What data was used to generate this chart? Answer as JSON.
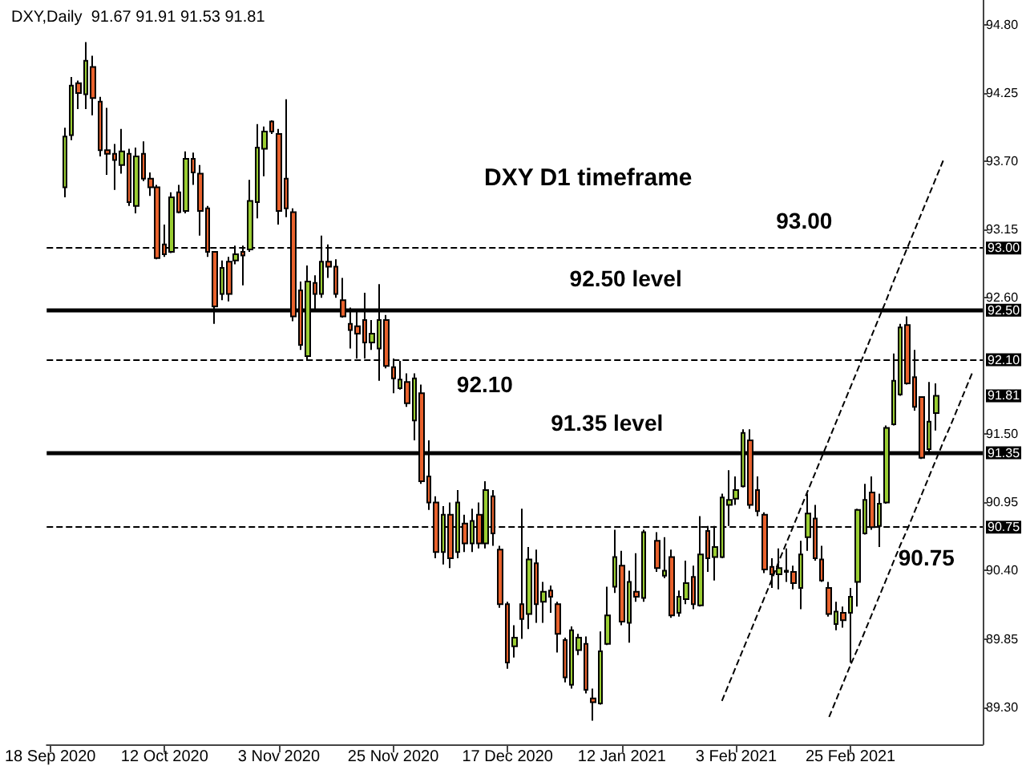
{
  "chart_data": {
    "type": "candlestick",
    "title": "DXY,Daily  91.67 91.91 91.53 91.81",
    "categories": [
      "18 Sep 2020",
      null,
      null,
      null,
      null,
      null,
      null,
      null,
      null,
      null,
      null,
      null,
      null,
      null,
      null,
      null,
      "12 Oct 2020",
      null,
      null,
      null,
      null,
      null,
      null,
      null,
      null,
      null,
      null,
      null,
      null,
      null,
      null,
      null,
      "3 Nov 2020",
      null,
      null,
      null,
      null,
      null,
      null,
      null,
      null,
      null,
      null,
      null,
      null,
      null,
      null,
      null,
      "25 Nov 2020",
      null,
      null,
      null,
      null,
      null,
      null,
      null,
      null,
      null,
      null,
      null,
      null,
      null,
      null,
      null,
      "17 Dec 2020",
      null,
      null,
      null,
      null,
      null,
      null,
      null,
      null,
      null,
      null,
      null,
      null,
      null,
      null,
      null,
      "12 Jan 2021",
      null,
      null,
      null,
      null,
      null,
      null,
      null,
      null,
      null,
      null,
      null,
      null,
      null,
      null,
      null,
      "3 Feb 2021",
      null,
      null,
      null,
      null,
      null,
      null,
      null,
      null,
      null,
      null,
      null,
      null,
      null,
      null,
      null,
      "25 Feb 2021",
      null,
      null,
      null,
      null,
      null,
      null,
      null,
      null,
      null,
      null,
      null,
      null,
      null,
      null,
      null,
      null,
      null,
      null
    ],
    "ohlc": [
      null,
      null,
      [
        93.49,
        93.97,
        93.41,
        93.9
      ],
      [
        93.91,
        94.38,
        93.87,
        94.31
      ],
      [
        94.33,
        94.35,
        94.12,
        94.25
      ],
      [
        94.24,
        94.66,
        94.12,
        94.51
      ],
      [
        94.46,
        94.55,
        94.07,
        94.21
      ],
      [
        94.18,
        94.22,
        93.74,
        93.79
      ],
      [
        93.79,
        94.13,
        93.59,
        93.76
      ],
      [
        93.76,
        93.84,
        93.47,
        93.71
      ],
      [
        93.67,
        93.96,
        93.6,
        93.78
      ],
      [
        93.76,
        93.8,
        93.34,
        93.37
      ],
      [
        93.34,
        93.81,
        93.28,
        93.74
      ],
      [
        93.76,
        93.86,
        93.54,
        93.56
      ],
      [
        93.56,
        93.61,
        93.42,
        93.49
      ],
      [
        93.49,
        93.51,
        92.91,
        92.92
      ],
      [
        93.03,
        93.19,
        92.93,
        92.95
      ],
      [
        92.97,
        93.45,
        92.96,
        93.41
      ],
      [
        93.45,
        93.51,
        93.28,
        93.29
      ],
      [
        93.3,
        93.78,
        93.28,
        93.72
      ],
      [
        93.72,
        93.77,
        93.51,
        93.61
      ],
      [
        93.6,
        93.67,
        93.1,
        93.3
      ],
      [
        93.32,
        93.34,
        92.93,
        92.97
      ],
      [
        92.97,
        92.97,
        92.39,
        92.53
      ],
      [
        92.63,
        92.9,
        92.58,
        92.84
      ],
      [
        92.89,
        92.93,
        92.57,
        92.63
      ],
      [
        92.9,
        93.02,
        92.87,
        92.95
      ],
      [
        92.97,
        93.02,
        92.7,
        92.94
      ],
      [
        92.99,
        93.55,
        92.97,
        93.38
      ],
      [
        93.37,
        94.0,
        93.24,
        93.81
      ],
      [
        93.8,
        93.98,
        93.58,
        93.94
      ],
      [
        94.02,
        94.03,
        93.92,
        93.94
      ],
      [
        93.92,
        93.96,
        93.19,
        93.3
      ],
      [
        93.56,
        94.2,
        93.25,
        93.32
      ],
      [
        93.29,
        93.32,
        92.41,
        92.45
      ],
      [
        92.66,
        92.73,
        92.18,
        92.22
      ],
      [
        92.13,
        92.86,
        92.09,
        92.73
      ],
      [
        92.72,
        92.78,
        92.5,
        92.63
      ],
      [
        92.63,
        93.1,
        92.6,
        92.89
      ],
      [
        92.89,
        93.03,
        92.76,
        92.85
      ],
      [
        92.85,
        92.91,
        92.6,
        92.63
      ],
      [
        92.58,
        92.76,
        92.44,
        92.45
      ],
      [
        92.39,
        92.52,
        92.19,
        92.34
      ],
      [
        92.37,
        92.5,
        92.11,
        92.31
      ],
      [
        92.42,
        92.64,
        92.11,
        92.24
      ],
      [
        92.24,
        92.42,
        92.18,
        92.31
      ],
      [
        92.19,
        92.71,
        91.93,
        92.42
      ],
      [
        92.42,
        92.46,
        92.03,
        92.05
      ],
      [
        92.04,
        92.11,
        91.83,
        91.95
      ],
      [
        91.87,
        92.09,
        91.86,
        91.94
      ],
      [
        91.92,
        91.99,
        91.72,
        91.75
      ],
      [
        91.61,
        91.99,
        91.45,
        91.95
      ],
      [
        91.83,
        91.9,
        91.1,
        91.12
      ],
      [
        91.16,
        91.45,
        90.89,
        90.95
      ],
      [
        90.95,
        91.0,
        90.5,
        90.55
      ],
      [
        90.55,
        90.92,
        90.45,
        90.85
      ],
      [
        90.85,
        90.95,
        90.42,
        90.5
      ],
      [
        90.55,
        91.05,
        90.5,
        90.95
      ],
      [
        90.78,
        90.85,
        90.55,
        90.62
      ],
      [
        90.62,
        90.9,
        90.55,
        90.8
      ],
      [
        90.85,
        90.95,
        90.58,
        90.62
      ],
      [
        90.62,
        91.12,
        90.58,
        91.05
      ],
      [
        91.0,
        91.05,
        90.6,
        90.7
      ],
      [
        90.57,
        90.6,
        90.1,
        90.13
      ],
      [
        90.13,
        90.15,
        89.61,
        89.66
      ],
      [
        89.79,
        89.96,
        89.7,
        89.86
      ],
      [
        90.13,
        90.9,
        89.85,
        90.01
      ],
      [
        90.05,
        90.59,
        89.93,
        90.49
      ],
      [
        90.46,
        90.57,
        89.98,
        90.13
      ],
      [
        90.15,
        90.31,
        89.98,
        90.23
      ],
      [
        90.24,
        90.28,
        90.06,
        90.19
      ],
      [
        90.13,
        90.15,
        89.74,
        89.89
      ],
      [
        89.84,
        89.86,
        89.5,
        89.54
      ],
      [
        89.48,
        89.95,
        89.45,
        89.92
      ],
      [
        89.76,
        89.89,
        89.72,
        89.86
      ],
      [
        89.81,
        89.87,
        89.41,
        89.44
      ],
      [
        89.37,
        89.45,
        89.19,
        89.34
      ],
      [
        89.33,
        89.91,
        89.32,
        89.75
      ],
      [
        89.81,
        90.27,
        89.8,
        90.04
      ],
      [
        90.27,
        90.73,
        90.22,
        90.51
      ],
      [
        90.44,
        90.56,
        89.96,
        89.99
      ],
      [
        89.98,
        90.4,
        89.82,
        90.31
      ],
      [
        90.23,
        90.54,
        90.15,
        90.19
      ],
      [
        90.18,
        90.73,
        90.15,
        90.71
      ],
      null,
      [
        90.64,
        90.71,
        90.39,
        90.42
      ],
      [
        90.36,
        90.67,
        90.34,
        90.4
      ],
      [
        90.51,
        90.57,
        90.02,
        90.04
      ],
      [
        90.06,
        90.24,
        90.03,
        90.19
      ],
      [
        90.17,
        90.48,
        90.13,
        90.3
      ],
      [
        90.35,
        90.44,
        90.09,
        90.13
      ],
      [
        90.12,
        90.84,
        90.11,
        90.53
      ],
      [
        90.72,
        90.76,
        90.39,
        90.5
      ],
      [
        90.51,
        90.76,
        90.32,
        90.59
      ],
      [
        90.51,
        91.02,
        90.5,
        90.99
      ],
      [
        90.93,
        91.21,
        90.76,
        90.97
      ],
      [
        90.98,
        91.16,
        90.93,
        91.05
      ],
      [
        91.08,
        91.54,
        91.07,
        91.51
      ],
      [
        91.45,
        91.54,
        90.9,
        90.93
      ],
      [
        91.05,
        91.16,
        90.84,
        90.88
      ],
      [
        90.85,
        90.87,
        90.38,
        90.41
      ],
      [
        90.43,
        90.5,
        90.26,
        90.37
      ],
      [
        90.37,
        90.58,
        90.25,
        90.42
      ],
      [
        90.39,
        90.58,
        90.31,
        90.4
      ],
      [
        90.39,
        90.44,
        90.25,
        90.3
      ],
      [
        90.26,
        90.64,
        90.09,
        90.53
      ],
      [
        90.67,
        91.02,
        90.56,
        90.86
      ],
      [
        90.82,
        90.93,
        90.48,
        90.5
      ],
      [
        90.49,
        90.6,
        90.31,
        90.32
      ],
      [
        90.26,
        90.31,
        90.03,
        90.05
      ],
      [
        89.97,
        90.15,
        89.92,
        90.07
      ],
      [
        90.06,
        90.11,
        89.94,
        90.0
      ],
      [
        90.06,
        90.26,
        89.66,
        90.19
      ],
      [
        90.31,
        90.9,
        90.11,
        90.89
      ],
      [
        90.7,
        91.1,
        90.69,
        90.97
      ],
      [
        91.03,
        91.16,
        90.73,
        90.75
      ],
      [
        90.76,
        91.02,
        90.59,
        90.94
      ],
      [
        90.95,
        91.57,
        90.94,
        91.55
      ],
      [
        91.58,
        92.15,
        91.57,
        91.93
      ],
      [
        91.82,
        92.39,
        91.81,
        92.36
      ],
      [
        92.38,
        92.45,
        91.9,
        91.91
      ],
      [
        91.96,
        92.18,
        91.69,
        91.72
      ],
      [
        91.8,
        91.8,
        91.3,
        91.31
      ],
      [
        91.38,
        91.92,
        91.34,
        91.6
      ],
      [
        91.67,
        91.91,
        91.53,
        91.81
      ],
      null,
      null,
      null,
      null,
      null,
      null
    ],
    "colors": [
      null,
      null,
      "#9acd32",
      "#9acd32",
      "#e8612c",
      "#9acd32",
      "#e8612c",
      "#e8612c",
      "#e8612c",
      "#e8612c",
      "#9acd32",
      "#e8612c",
      "#9acd32",
      "#e8612c",
      "#e8612c",
      "#e8612c",
      "#e8612c",
      "#9acd32",
      "#e8612c",
      "#9acd32",
      "#e8612c",
      "#e8612c",
      "#e8612c",
      "#e8612c",
      "#9acd32",
      "#e8612c",
      "#9acd32",
      "#e8612c",
      "#9acd32",
      "#9acd32",
      "#9acd32",
      "#e8612c",
      "#e8612c",
      "#e8612c",
      "#e8612c",
      "#e8612c",
      "#9acd32",
      "#e8612c",
      "#9acd32",
      "#e8612c",
      "#e8612c",
      "#e8612c",
      "#e8612c",
      "#e8612c",
      "#e8612c",
      "#9acd32",
      "#9acd32",
      "#e8612c",
      "#e8612c",
      "#9acd32",
      "#e8612c",
      "#9acd32",
      "#e8612c",
      "#e8612c",
      "#e8612c",
      "#9acd32",
      "#e8612c",
      "#9acd32",
      "#e8612c",
      "#9acd32",
      "#e8612c",
      "#9acd32",
      "#e8612c",
      "#e8612c",
      "#e8612c",
      "#9acd32",
      "#e8612c",
      "#9acd32",
      "#e8612c",
      "#9acd32",
      "#e8612c",
      "#e8612c",
      "#e8612c",
      "#9acd32",
      "#9acd32",
      "#e8612c",
      "#e8612c",
      "#9acd32",
      "#9acd32",
      "#9acd32",
      "#e8612c",
      "#9acd32",
      "#e8612c",
      "#9acd32",
      null,
      "#e8612c",
      "#9acd32",
      "#e8612c",
      "#9acd32",
      "#9acd32",
      "#e8612c",
      "#9acd32",
      "#e8612c",
      "#9acd32",
      "#9acd32",
      "#9acd32",
      "#9acd32",
      "#9acd32",
      "#e8612c",
      "#e8612c",
      "#e8612c",
      "#e8612c",
      "#9acd32",
      "#9acd32",
      "#e8612c",
      "#9acd32",
      "#9acd32",
      "#e8612c",
      "#e8612c",
      "#e8612c",
      "#9acd32",
      "#e8612c",
      "#9acd32",
      "#9acd32",
      "#9acd32",
      "#e8612c",
      "#9acd32",
      "#9acd32",
      "#9acd32",
      "#9acd32",
      "#e8612c",
      "#e8612c",
      "#e8612c",
      "#9acd32",
      "#9acd32",
      null,
      null,
      null,
      null,
      null,
      null
    ],
    "series": [
      {
        "type": "line",
        "color": "#000000",
        "line_style": "dashed",
        "values": [
          null,
          null,
          null,
          null,
          null,
          null,
          null,
          null,
          null,
          null,
          null,
          null,
          null,
          null,
          null,
          null,
          null,
          null,
          null,
          null,
          null,
          null,
          null,
          null,
          null,
          null,
          null,
          null,
          null,
          null,
          null,
          null,
          null,
          null,
          null,
          null,
          null,
          null,
          null,
          null,
          null,
          null,
          null,
          null,
          null,
          null,
          null,
          null,
          null,
          null,
          null,
          null,
          null,
          null,
          null,
          null,
          null,
          null,
          null,
          null,
          null,
          null,
          null,
          null,
          null,
          null,
          null,
          null,
          null,
          null,
          null,
          null,
          null,
          null,
          null,
          null,
          null,
          null,
          null,
          null,
          null,
          null,
          null,
          null,
          null,
          null,
          null,
          null,
          null,
          null,
          null,
          null,
          null,
          null,
          89.35,
          89.49,
          89.63,
          89.77,
          89.91,
          90.05,
          90.19,
          90.33,
          90.48,
          90.62,
          90.76,
          90.9,
          91.04,
          91.18,
          91.32,
          91.46,
          91.6,
          91.74,
          91.88,
          92.02,
          92.16,
          92.3,
          92.44,
          92.58,
          92.73,
          92.87,
          93.01,
          93.15,
          93.29,
          93.43,
          93.57,
          93.71,
          null,
          null,
          null,
          null,
          null
        ]
      },
      {
        "type": "line",
        "color": "#000000",
        "line_style": "dashed",
        "values": [
          null,
          null,
          null,
          null,
          null,
          null,
          null,
          null,
          null,
          null,
          null,
          null,
          null,
          null,
          null,
          null,
          null,
          null,
          null,
          null,
          null,
          null,
          null,
          null,
          null,
          null,
          null,
          null,
          null,
          null,
          null,
          null,
          null,
          null,
          null,
          null,
          null,
          null,
          null,
          null,
          null,
          null,
          null,
          null,
          null,
          null,
          null,
          null,
          null,
          null,
          null,
          null,
          null,
          null,
          null,
          null,
          null,
          null,
          null,
          null,
          null,
          null,
          null,
          null,
          null,
          null,
          null,
          null,
          null,
          null,
          null,
          null,
          null,
          null,
          null,
          null,
          null,
          null,
          null,
          null,
          null,
          null,
          null,
          null,
          null,
          null,
          null,
          null,
          null,
          null,
          null,
          null,
          null,
          null,
          null,
          null,
          null,
          null,
          null,
          null,
          null,
          null,
          null,
          null,
          null,
          null,
          null,
          null,
          null,
          89.22,
          89.36,
          89.5,
          89.64,
          89.77,
          89.91,
          90.05,
          90.19,
          90.33,
          90.47,
          90.61,
          90.74,
          90.88,
          91.02,
          91.16,
          91.3,
          91.44,
          91.57,
          91.71,
          91.85,
          91.99,
          null
        ]
      }
    ],
    "ylim": [
      89.0,
      95.0
    ],
    "yticks": [
      {
        "value": 89.3,
        "label": "89.30"
      },
      {
        "value": 89.85,
        "label": "89.85"
      },
      {
        "value": 90.4,
        "label": "90.40"
      },
      {
        "value": 90.95,
        "label": "90.95"
      },
      {
        "value": 91.5,
        "label": "91.50"
      },
      {
        "value": 92.6,
        "label": "92.60"
      },
      {
        "value": 93.15,
        "label": "93.15"
      },
      {
        "value": 93.7,
        "label": "93.70"
      },
      {
        "value": 94.25,
        "label": "94.25"
      },
      {
        "value": 94.8,
        "label": "94.80"
      }
    ],
    "ref_lines": [
      {
        "axis": "y",
        "value": 93.0,
        "label": "93.00",
        "color": "#000000",
        "line_style": "dashed"
      },
      {
        "axis": "y",
        "value": 92.5,
        "label": "92.50 level",
        "color": "#000000",
        "line_style": "solid"
      },
      {
        "axis": "y",
        "value": 92.1,
        "label": "92.10",
        "color": "#000000",
        "line_style": "dashed"
      },
      {
        "axis": "y",
        "value": 91.35,
        "label": "91.35 level",
        "color": "#000000",
        "line_style": "solid"
      },
      {
        "axis": "y",
        "value": 90.75,
        "label": "90.75",
        "color": "#000000",
        "line_style": "dashed"
      }
    ],
    "annotations": [
      "DXY D1 timeframe",
      {
        "text": "93.00",
        "y": 93.0
      },
      {
        "text": "92.50",
        "y": 92.5
      },
      {
        "text": "92.10",
        "y": 92.1
      },
      {
        "text": "91.81",
        "y": 91.81
      },
      {
        "text": "91.35",
        "y": 91.35
      },
      {
        "text": "90.75",
        "y": 90.75
      }
    ]
  }
}
